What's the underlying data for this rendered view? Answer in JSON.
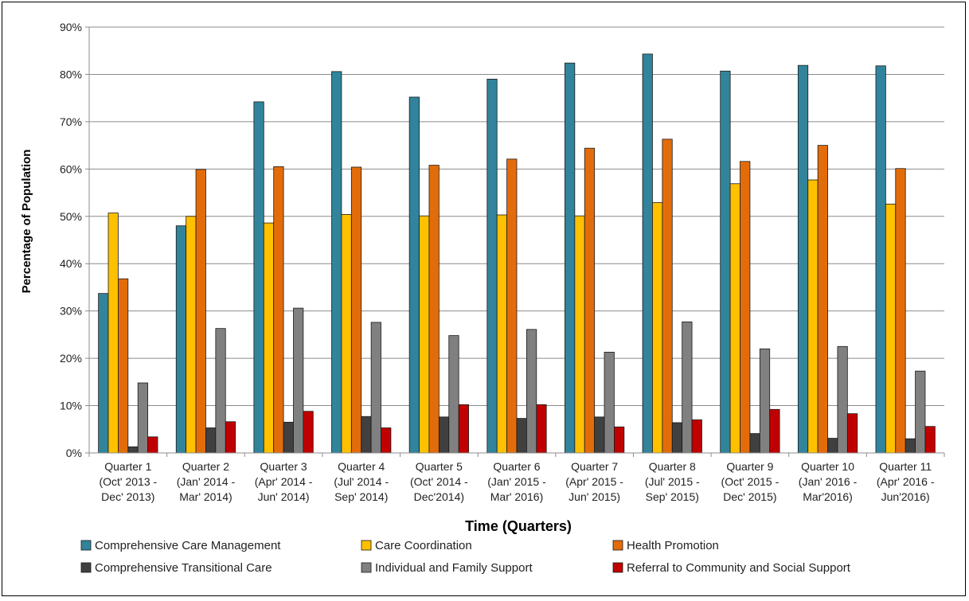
{
  "chart_data": {
    "type": "bar",
    "title": "",
    "xlabel": "Time (Quarters)",
    "ylabel": "Percentage of Population",
    "ylim": [
      0,
      90
    ],
    "y_ticks": [
      "0%",
      "10%",
      "20%",
      "30%",
      "40%",
      "50%",
      "60%",
      "70%",
      "80%",
      "90%"
    ],
    "grid": true,
    "legend_position": "bottom",
    "categories": [
      [
        "Quarter 1",
        "(Oct' 2013 -",
        "Dec' 2013)"
      ],
      [
        "Quarter 2",
        "(Jan' 2014 -",
        "Mar' 2014)"
      ],
      [
        "Quarter 3",
        "(Apr' 2014 -",
        "Jun' 2014)"
      ],
      [
        "Quarter 4",
        "(Jul' 2014 -",
        "Sep' 2014)"
      ],
      [
        "Quarter 5",
        "(Oct' 2014 -",
        "Dec'2014)"
      ],
      [
        "Quarter 6",
        "(Jan' 2015 -",
        "Mar' 2016)"
      ],
      [
        "Quarter 7",
        "(Apr' 2015 -",
        "Jun' 2015)"
      ],
      [
        "Quarter 8",
        "(Jul' 2015 -",
        "Sep' 2015)"
      ],
      [
        "Quarter 9",
        "(Oct' 2015 -",
        "Dec' 2015)"
      ],
      [
        "Quarter 10",
        "(Jan' 2016 -",
        "Mar'2016)"
      ],
      [
        "Quarter 11",
        "(Apr' 2016 -",
        "Jun'2016)"
      ]
    ],
    "series": [
      {
        "name": "Comprehensive Care Management",
        "color": "#31849b",
        "values": [
          33.7,
          48.0,
          74.2,
          80.6,
          75.2,
          79.0,
          82.4,
          84.3,
          80.7,
          81.9,
          81.8
        ]
      },
      {
        "name": "Care Coordination",
        "color": "#ffc000",
        "values": [
          50.7,
          50.0,
          48.6,
          50.4,
          50.1,
          50.3,
          50.1,
          52.9,
          56.9,
          57.7,
          52.6
        ]
      },
      {
        "name": "Health Promotion",
        "color": "#e36c0a",
        "values": [
          36.8,
          59.9,
          60.5,
          60.4,
          60.8,
          62.1,
          64.4,
          66.3,
          61.6,
          65.0,
          60.1
        ]
      },
      {
        "name": "Comprehensive Transitional Care",
        "color": "#404040",
        "values": [
          1.3,
          5.3,
          6.5,
          7.7,
          7.6,
          7.3,
          7.6,
          6.4,
          4.1,
          3.1,
          3.0
        ]
      },
      {
        "name": "Individual and Family Support",
        "color": "#808080",
        "values": [
          14.8,
          26.3,
          30.6,
          27.6,
          24.8,
          26.1,
          21.3,
          27.7,
          22.0,
          22.5,
          17.3
        ]
      },
      {
        "name": "Referral to Community and Social Support",
        "color": "#c00000",
        "values": [
          3.4,
          6.6,
          8.8,
          5.3,
          10.2,
          10.2,
          5.5,
          7.0,
          9.2,
          8.3,
          5.6
        ]
      }
    ]
  }
}
